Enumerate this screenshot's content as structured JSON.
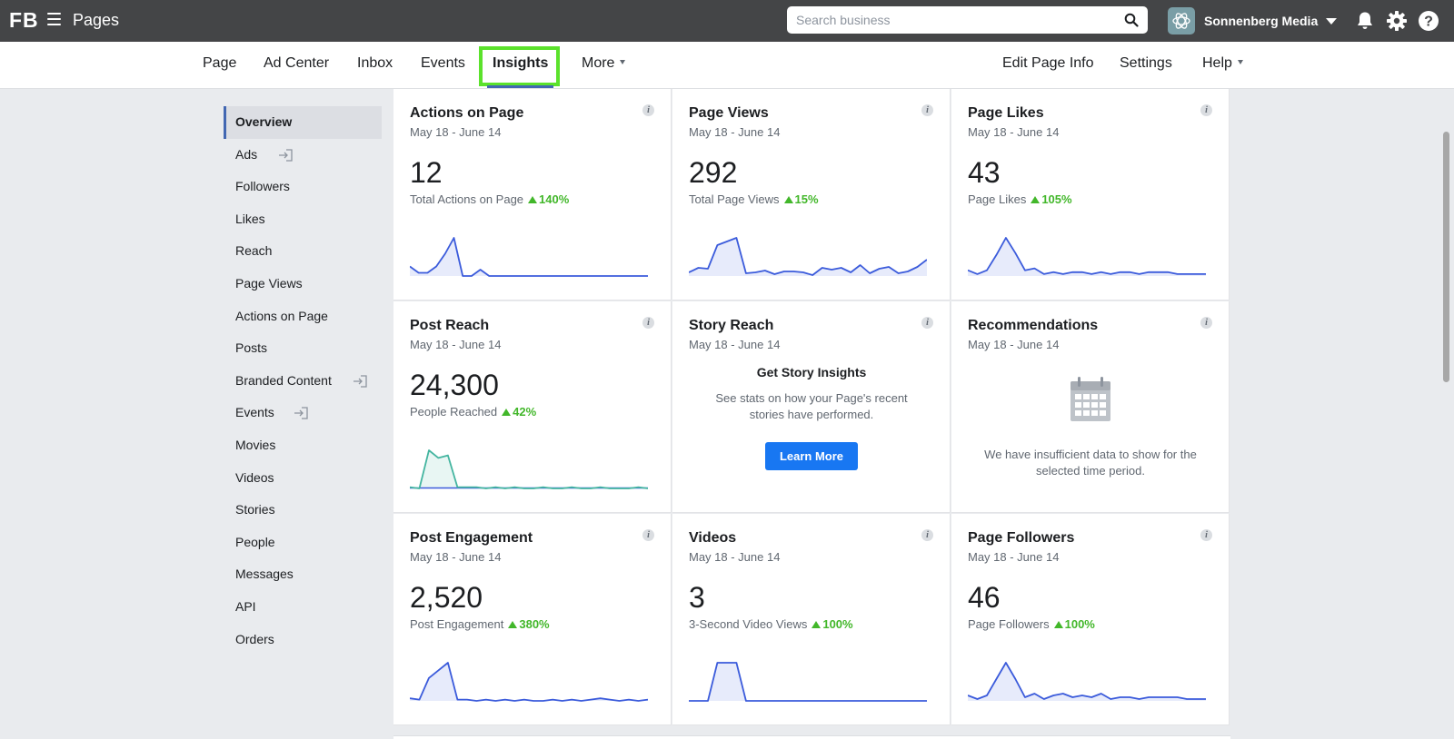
{
  "topbar": {
    "logo": "FB",
    "app_title": "Pages",
    "search_placeholder": "Search business",
    "account_name": "Sonnenberg Media"
  },
  "page_nav": {
    "left": [
      "Page",
      "Ad Center",
      "Inbox",
      "Events",
      "Insights",
      "More"
    ],
    "active": "Insights",
    "right": [
      "Edit Page Info",
      "Settings",
      "Help"
    ]
  },
  "sidebar": {
    "items": [
      {
        "label": "Overview",
        "active": true
      },
      {
        "label": "Ads",
        "external": true
      },
      {
        "label": "Followers"
      },
      {
        "label": "Likes"
      },
      {
        "label": "Reach"
      },
      {
        "label": "Page Views"
      },
      {
        "label": "Actions on Page"
      },
      {
        "label": "Posts"
      },
      {
        "label": "Branded Content",
        "external": true
      },
      {
        "label": "Events",
        "external": true
      },
      {
        "label": "Movies"
      },
      {
        "label": "Videos"
      },
      {
        "label": "Stories"
      },
      {
        "label": "People"
      },
      {
        "label": "Messages"
      },
      {
        "label": "API"
      },
      {
        "label": "Orders"
      }
    ]
  },
  "cards": {
    "actions": {
      "title": "Actions on Page",
      "date": "May 18 - June 14",
      "value": "12",
      "label": "Total Actions on Page",
      "change": "140%",
      "spark": [
        3,
        1,
        1,
        3,
        7,
        12,
        0,
        0,
        2,
        0,
        0,
        0,
        0,
        0,
        0,
        0,
        0,
        0,
        0,
        0,
        0,
        0,
        0,
        0,
        0,
        0,
        0,
        0
      ]
    },
    "page_views": {
      "title": "Page Views",
      "date": "May 18 - June 14",
      "value": "292",
      "label": "Total Page Views",
      "change": "15%",
      "spark": [
        4,
        9,
        8,
        34,
        38,
        42,
        3,
        4,
        6,
        2,
        5,
        5,
        4,
        1,
        9,
        7,
        9,
        4,
        12,
        3,
        8,
        10,
        3,
        5,
        10,
        18
      ]
    },
    "page_likes": {
      "title": "Page Likes",
      "date": "May 18 - June 14",
      "value": "43",
      "label": "Page Likes",
      "change": "105%",
      "spark": [
        3,
        1,
        3,
        11,
        20,
        12,
        3,
        4,
        1,
        2,
        1,
        2,
        2,
        1,
        2,
        1,
        2,
        2,
        1,
        2,
        2,
        2,
        1,
        1,
        1,
        1
      ]
    },
    "post_reach": {
      "title": "Post Reach",
      "date": "May 18 - June 14",
      "value": "24,300",
      "label": "People Reached",
      "change": "42%",
      "spark": [
        1,
        0,
        30,
        24,
        26,
        1,
        1,
        1,
        0,
        1,
        0,
        1,
        0,
        0,
        1,
        0,
        0,
        1,
        0,
        0,
        1,
        0,
        0,
        0,
        1,
        0
      ]
    },
    "story_reach": {
      "title": "Story Reach",
      "date": "May 18 - June 14",
      "heading": "Get Story Insights",
      "desc": "See stats on how your Page's recent stories have performed.",
      "button": "Learn More"
    },
    "recommendations": {
      "title": "Recommendations",
      "date": "May 18 - June 14",
      "message": "We have insufficient data to show for the selected time period."
    },
    "post_engagement": {
      "title": "Post Engagement",
      "date": "May 18 - June 14",
      "value": "2,520",
      "label": "Post Engagement",
      "change": "380%",
      "spark": [
        2,
        1,
        18,
        24,
        30,
        1,
        1,
        0,
        1,
        0,
        1,
        0,
        1,
        0,
        0,
        1,
        0,
        1,
        0,
        1,
        2,
        1,
        0,
        1,
        0,
        1
      ]
    },
    "videos": {
      "title": "Videos",
      "date": "May 18 - June 14",
      "value": "3",
      "label": "3-Second Video Views",
      "change": "100%",
      "spark": [
        0,
        0,
        0,
        3,
        3,
        3,
        0,
        0,
        0,
        0,
        0,
        0,
        0,
        0,
        0,
        0,
        0,
        0,
        0,
        0,
        0,
        0,
        0,
        0,
        0,
        0
      ]
    },
    "page_followers": {
      "title": "Page Followers",
      "date": "May 18 - June 14",
      "value": "46",
      "label": "Page Followers",
      "change": "100%",
      "spark": [
        3,
        1,
        3,
        12,
        21,
        12,
        2,
        4,
        1,
        3,
        4,
        2,
        3,
        2,
        4,
        1,
        2,
        2,
        1,
        2,
        2,
        2,
        2,
        1,
        1,
        1
      ]
    }
  },
  "colors": {
    "accent": "#4267b2",
    "highlight": "#5be22c",
    "positive": "#42b72a",
    "line": "#3b5bdb",
    "reach": "#44b5a0",
    "button": "#1877f2"
  },
  "icons": {
    "search": "search-icon",
    "bell": "bell-icon",
    "gear": "gear-icon",
    "help": "help-icon",
    "info": "info-icon",
    "calendar": "calendar-icon",
    "external": "external-link-icon"
  }
}
